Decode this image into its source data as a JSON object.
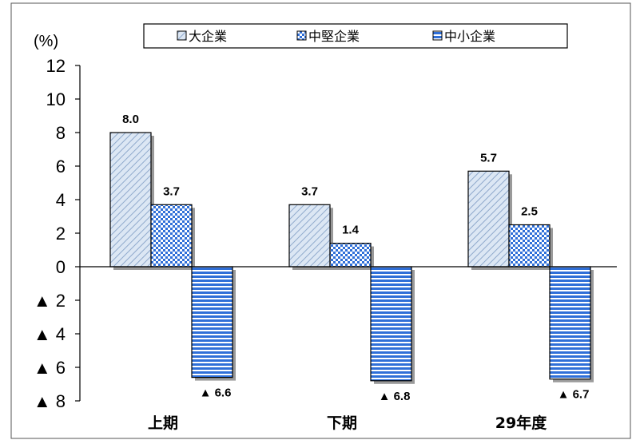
{
  "chart_data": {
    "type": "bar",
    "unit": "(%)",
    "categories": [
      "上期",
      "下期",
      "29年度"
    ],
    "series": [
      {
        "name": "大企業",
        "values": [
          8.0,
          3.7,
          5.7
        ],
        "labels": [
          "8.0",
          "3.7",
          "5.7"
        ],
        "color": "#c9d9ee",
        "pattern": "diagonal"
      },
      {
        "name": "中堅企業",
        "values": [
          3.7,
          1.4,
          2.5
        ],
        "labels": [
          "3.7",
          "1.4",
          "2.5"
        ],
        "color": "#2f6fd8",
        "pattern": "checker"
      },
      {
        "name": "中小企業",
        "values": [
          -6.6,
          -6.8,
          -6.7
        ],
        "labels": [
          "▲ 6.6",
          "▲ 6.8",
          "▲ 6.7"
        ],
        "color": "#2f6fd8",
        "pattern": "horizontal"
      }
    ],
    "ylim": [
      -8,
      12
    ],
    "yticks": [
      12,
      10,
      8,
      6,
      4,
      2,
      0,
      -2,
      -4,
      -6,
      -8
    ],
    "ytick_labels": [
      "12",
      "10",
      "8",
      "6",
      "4",
      "2",
      "0",
      "▲ 2",
      "▲ 4",
      "▲ 6",
      "▲ 8"
    ],
    "legend": "top",
    "grid": false
  }
}
